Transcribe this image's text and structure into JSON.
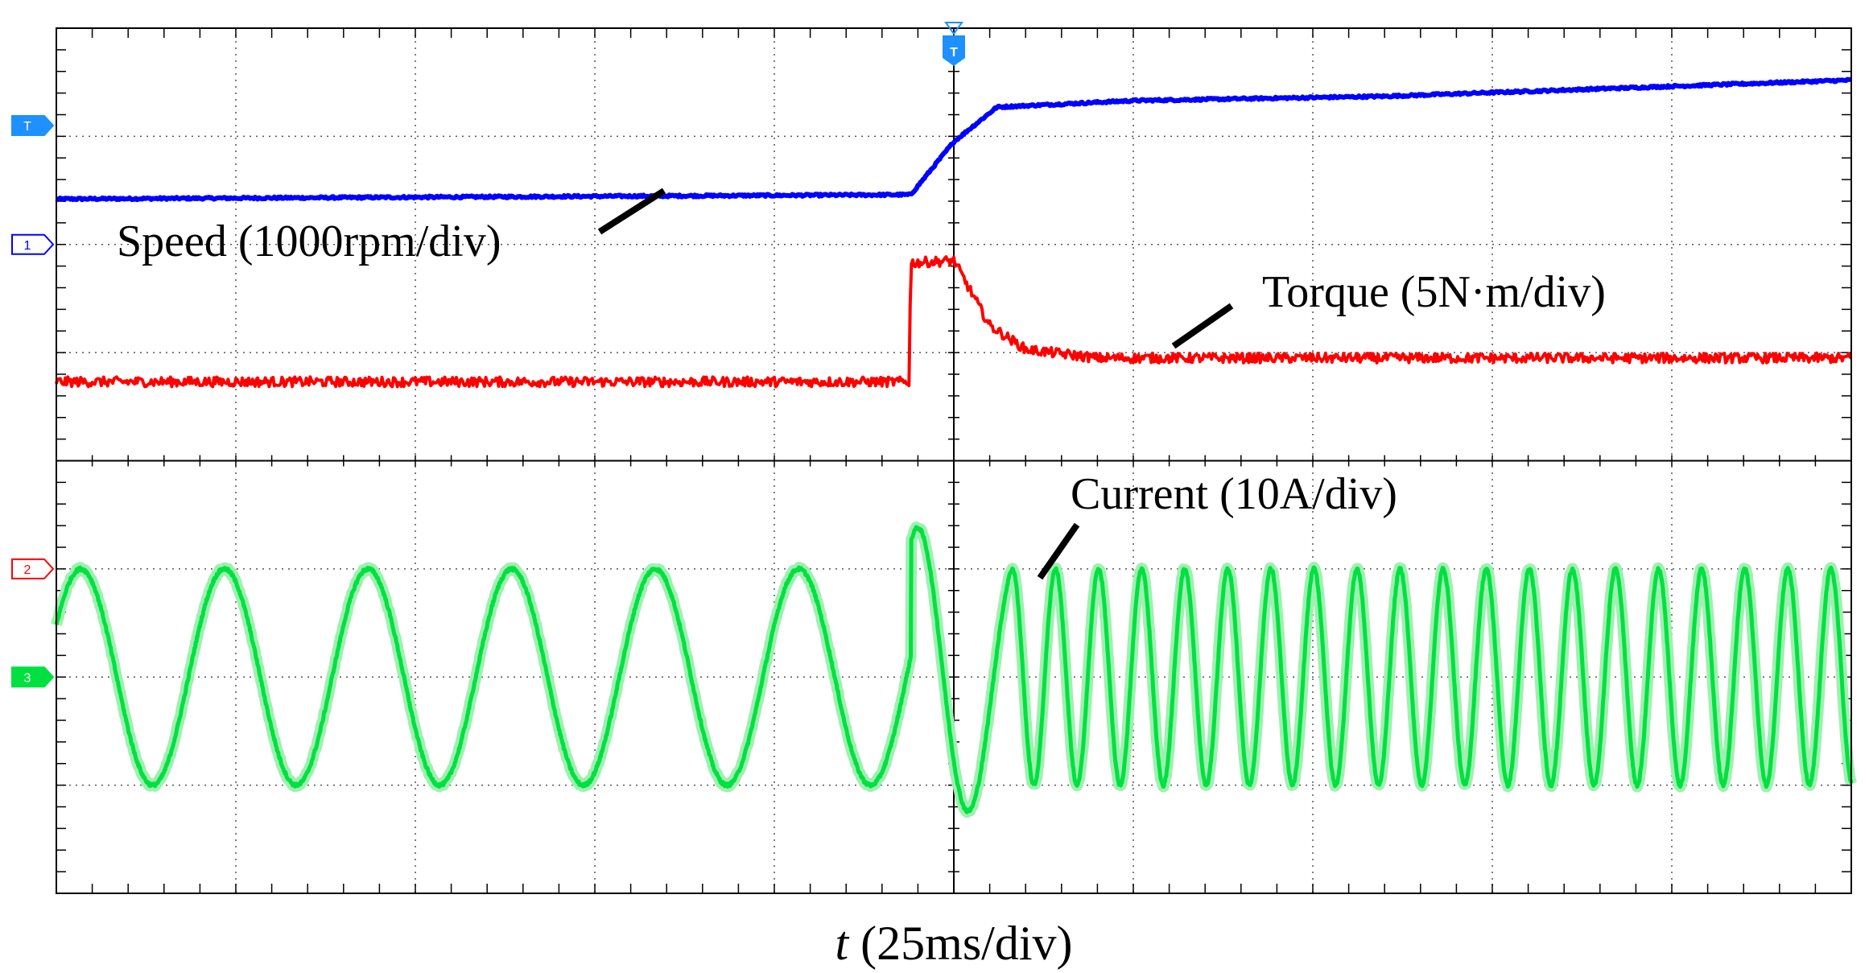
{
  "chart_data": {
    "type": "line",
    "title": "",
    "xlabel": "t (25ms/div)",
    "x_unit_per_div": "25ms/div",
    "divisions": {
      "x": 10,
      "y": 8
    },
    "grid": true,
    "trigger": {
      "label": "T",
      "t_ms": 0,
      "color": "#1e90ff"
    },
    "x_range_ms": [
      -125,
      125
    ],
    "series": [
      {
        "name": "Speed",
        "label": "Speed (1000rpm/div)",
        "scale": "1000rpm/div",
        "color": "#0000ff",
        "channel_marker": "1",
        "marker_div": 6,
        "points": [
          [
            -125,
            6.42
          ],
          [
            -6,
            6.46
          ],
          [
            0,
            6.95
          ],
          [
            6,
            7.27
          ],
          [
            25,
            7.33
          ],
          [
            60,
            7.37
          ],
          [
            125,
            7.52
          ]
        ]
      },
      {
        "name": "Torque",
        "label": "Torque (5N·m/div)",
        "scale": "5N·m/div",
        "color": "#ff0000",
        "channel_marker": "2",
        "marker_div": 3,
        "points": [
          [
            -125,
            4.73
          ],
          [
            -6.2,
            4.73
          ],
          [
            -6,
            5.83
          ],
          [
            0,
            5.85
          ],
          [
            5,
            5.25
          ],
          [
            10,
            5.03
          ],
          [
            20,
            4.95
          ],
          [
            125,
            4.95
          ]
        ]
      },
      {
        "name": "Current",
        "label": "Current (10A/div)",
        "scale": "10A/div",
        "color": "#00e040",
        "channel_marker": "3",
        "marker_div": 2,
        "segments": [
          {
            "t_ms": [
              -125,
              -6
            ],
            "offset_div": 2,
            "amplitude_div": 1.0,
            "period_ms": 20
          },
          {
            "t_ms": [
              -6,
              8
            ],
            "transient_min_div": 0.3,
            "transient_max_div": 3.4
          },
          {
            "t_ms": [
              8,
              125
            ],
            "offset_div": 2,
            "amplitude_div": 1.0,
            "period_ms": 6
          }
        ]
      }
    ],
    "trigger_level_marker": {
      "label": "T",
      "div": 7.1,
      "color": "#1e90ff"
    }
  }
}
